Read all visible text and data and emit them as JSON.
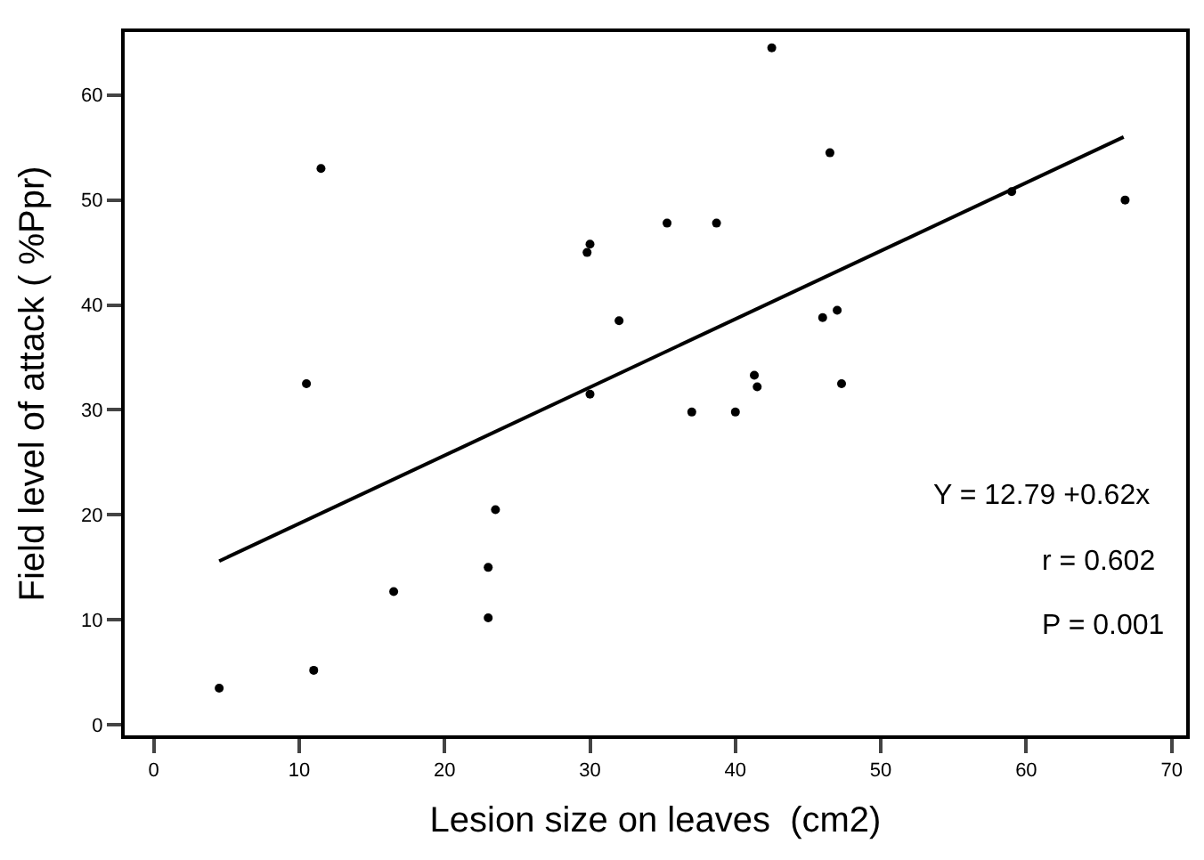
{
  "chart_data": {
    "type": "scatter",
    "xlabel": "Lesion size on leaves  (cm2)",
    "ylabel": "Field level of attack ( %Ppr)",
    "xlim": [
      -2,
      71
    ],
    "xticks": [
      0,
      10,
      20,
      30,
      40,
      50,
      60,
      70
    ],
    "ylim": [
      -1,
      66
    ],
    "yticks": [
      0,
      10,
      20,
      30,
      40,
      50,
      60
    ],
    "grid": false,
    "series": [
      {
        "marker": "circle",
        "color": "#000000",
        "x": [
          4.5,
          10.5,
          11,
          11.5,
          16.5,
          23,
          23,
          23.5,
          29.8,
          30,
          30,
          32,
          35.3,
          37,
          38.7,
          40,
          41.3,
          41.5,
          42.5,
          46,
          46.5,
          47,
          47.3,
          59,
          66.8
        ],
        "values": [
          3.5,
          32.5,
          5.2,
          53,
          12.7,
          10.2,
          15,
          20.5,
          45,
          45.8,
          31.5,
          38.5,
          47.8,
          29.8,
          47.8,
          29.8,
          33.3,
          32.2,
          64.5,
          38.8,
          54.5,
          39.5,
          32.5,
          50.8,
          50
        ]
      },
      {
        "type": "line",
        "color": "#000000",
        "x": [
          4.5,
          66.7
        ],
        "values": [
          15.6,
          56
        ]
      }
    ],
    "annotations": [
      "Y = 12.79 +0.62x",
      "r = 0.602",
      "P = 0.001"
    ]
  }
}
